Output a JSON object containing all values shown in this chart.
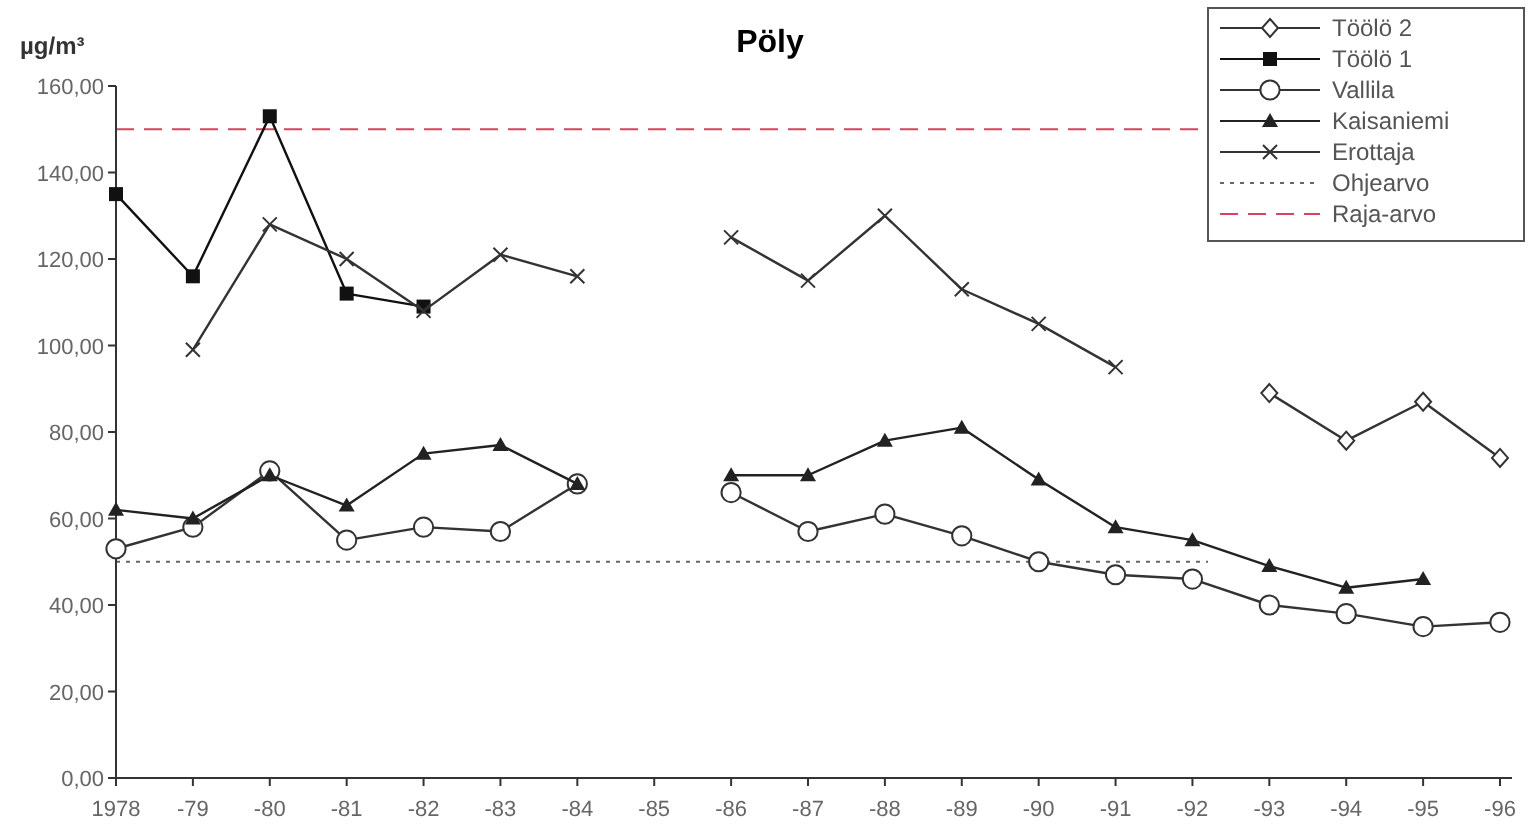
{
  "chart_data": {
    "type": "line",
    "title": "Pöly",
    "ylabel": "µg/m³",
    "categories": [
      "1978",
      "-79",
      "-80",
      "-81",
      "-82",
      "-83",
      "-84",
      "-85",
      "-86",
      "-87",
      "-88",
      "-89",
      "-90",
      "-91",
      "-92",
      "-93",
      "-94",
      "-95",
      "-96"
    ],
    "series": [
      {
        "name": "Töölö 2",
        "color": "#333333",
        "marker": "diamond",
        "values": [
          null,
          null,
          null,
          null,
          null,
          null,
          null,
          null,
          null,
          null,
          null,
          null,
          null,
          null,
          null,
          89,
          78,
          87,
          74
        ]
      },
      {
        "name": "Töölö 1",
        "color": "#111111",
        "marker": "square",
        "values": [
          135,
          116,
          153,
          112,
          109,
          null,
          null,
          null,
          null,
          null,
          null,
          null,
          null,
          null,
          null,
          null,
          null,
          null,
          null
        ]
      },
      {
        "name": "Vallila",
        "color": "#333333",
        "marker": "circle",
        "values": [
          53,
          58,
          71,
          55,
          58,
          57,
          68,
          null,
          66,
          57,
          61,
          56,
          50,
          47,
          46,
          40,
          38,
          35,
          36
        ]
      },
      {
        "name": "Kaisaniemi",
        "color": "#222222",
        "marker": "triangle",
        "values": [
          62,
          60,
          70,
          63,
          75,
          77,
          68,
          null,
          70,
          70,
          78,
          81,
          69,
          58,
          55,
          49,
          44,
          46,
          null
        ]
      },
      {
        "name": "Erottaja",
        "color": "#333333",
        "marker": "cross",
        "values": [
          null,
          99,
          128,
          120,
          108,
          121,
          116,
          null,
          125,
          115,
          130,
          113,
          105,
          95,
          null,
          null,
          null,
          null,
          null
        ]
      }
    ],
    "ylim": [
      0,
      160
    ],
    "yticks": [
      {
        "value": 0,
        "label": "0,00"
      },
      {
        "value": 20,
        "label": "20,00"
      },
      {
        "value": 40,
        "label": "40,00"
      },
      {
        "value": 60,
        "label": "60,00"
      },
      {
        "value": 80,
        "label": "80,00"
      },
      {
        "value": 100,
        "label": "100,00"
      },
      {
        "value": 120,
        "label": "120,00"
      },
      {
        "value": 140,
        "label": "140,00"
      },
      {
        "value": 160,
        "label": "160,00"
      }
    ],
    "ref_lines": [
      {
        "axis": "y",
        "value": 50,
        "label": "Ohjearvo",
        "color": "#666666",
        "line_style": "dotted"
      },
      {
        "axis": "y",
        "value": 150,
        "label": "Raja-arvo",
        "color": "#d9435f",
        "line_style": "dashed"
      }
    ],
    "grid": false,
    "legend": "top right"
  }
}
